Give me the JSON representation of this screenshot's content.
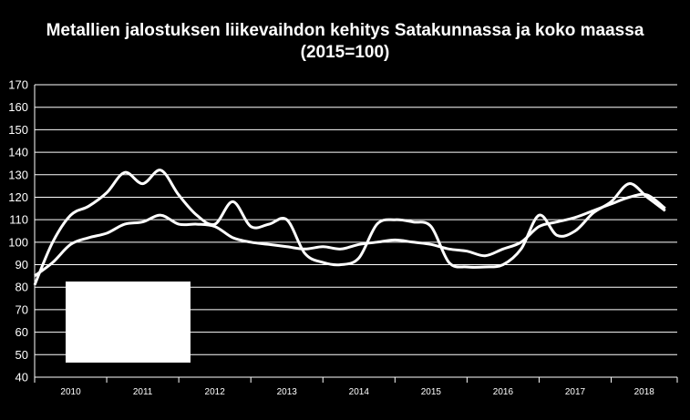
{
  "chart_data": {
    "type": "line",
    "title_line1": "Metallien jalostuksen liikevaihdon kehitys Satakunnassa ja koko maassa",
    "title_line2": "(2015=100)",
    "xlabel": "",
    "ylabel": "",
    "ylim": [
      40,
      170
    ],
    "yticks": [
      40,
      50,
      60,
      70,
      80,
      90,
      100,
      110,
      120,
      130,
      140,
      150,
      160,
      170
    ],
    "xticks": [
      "2010",
      "2011",
      "2012",
      "2013",
      "2014",
      "2015",
      "2016",
      "2017",
      "2018"
    ],
    "grid": "horizontal",
    "legend": "hidden by white box, bottom-left",
    "colors": {
      "background": "#000000",
      "line": "#ffffff",
      "grid": "#ffffff"
    },
    "x_start": 2010.0,
    "x_step": 0.25,
    "series": [
      {
        "values": [
          81,
          100,
          112,
          116,
          122,
          131,
          126,
          132,
          121,
          112,
          108,
          118,
          107,
          108,
          110,
          95,
          91,
          90,
          93,
          108,
          110,
          109,
          107,
          91,
          89,
          89,
          90,
          97,
          112,
          103,
          105,
          113,
          118,
          126,
          120,
          114
        ]
      },
      {
        "values": [
          85,
          91,
          99,
          102,
          104,
          108,
          109,
          112,
          108,
          108,
          107,
          102,
          100,
          99,
          98,
          97,
          98,
          97,
          99,
          100,
          101,
          100,
          99,
          97,
          96,
          94,
          97,
          100,
          107,
          109,
          111,
          114,
          117,
          120,
          121,
          115
        ]
      }
    ]
  }
}
